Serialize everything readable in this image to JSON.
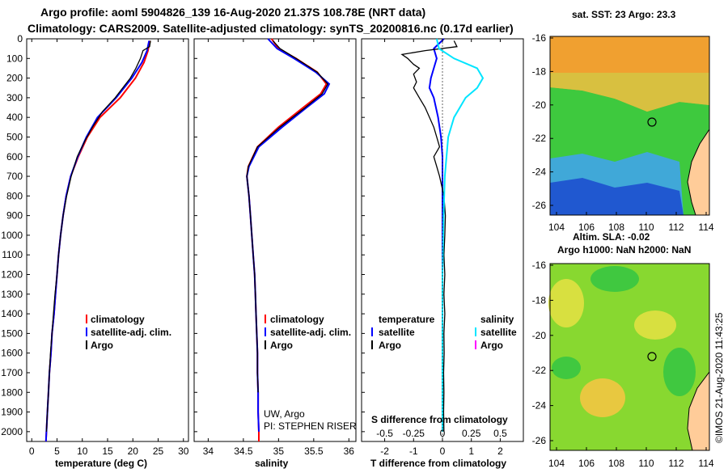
{
  "title": {
    "line1": "Argo profile: aoml 5904826_139 16-Aug-2020 21.37S 108.78E (NRT data)",
    "line2": "Climatology: CARS2009. Satellite-adjusted climatology: synTS_20200816.nc (0.17d earlier)"
  },
  "colors": {
    "climatology": "#ff0000",
    "satellite": "#0000ff",
    "argo": "#000000",
    "salinity_sat": "#00e5ff",
    "salinity_argo": "#ff00ff"
  },
  "depth_ticks": [
    "0",
    "100",
    "200",
    "300",
    "400",
    "500",
    "600",
    "700",
    "800",
    "900",
    "1000",
    "1100",
    "1200",
    "1300",
    "1400",
    "1500",
    "1600",
    "1700",
    "1800",
    "1900",
    "2000"
  ],
  "legend": {
    "climatology": "climatology",
    "satellite_adj": "satellite-adj. clim.",
    "argo": "Argo",
    "temperature": "temperature",
    "salinity": "salinity",
    "satellite": "satellite"
  },
  "credits": {
    "line1": "UW, Argo",
    "line2": "PI: STEPHEN RISER"
  },
  "s_diff_label": "S difference from climatology",
  "maps": {
    "sst_title": "sat. SST: 23 Argo: 23.3",
    "sla_title1": "Altim. SLA: -0.02",
    "sla_title2": "Argo h1000: NaN h2000: NaN",
    "lat_ticks": [
      "-16",
      "-18",
      "-20",
      "-22",
      "-24",
      "-26"
    ],
    "lon_ticks": [
      "104",
      "106",
      "108",
      "110",
      "112",
      "114"
    ]
  },
  "watermark": "©IMOS 21-Aug-2020 11:43:25",
  "chart_data": [
    {
      "type": "line",
      "name": "temperature-profile",
      "xlabel": "temperature (deg C)",
      "ylabel": "depth",
      "xlim": [
        -1,
        31
      ],
      "ylim": [
        2050,
        0
      ],
      "xticks": [
        "0",
        "5",
        "10",
        "15",
        "20",
        "25",
        "30"
      ],
      "series": [
        {
          "name": "climatology",
          "points": [
            [
              23.3,
              10
            ],
            [
              23.0,
              60
            ],
            [
              22.2,
              120
            ],
            [
              20.5,
              200
            ],
            [
              17.5,
              300
            ],
            [
              13.5,
              400
            ],
            [
              11.0,
              500
            ],
            [
              9.2,
              600
            ],
            [
              7.7,
              700
            ],
            [
              6.8,
              800
            ],
            [
              6.2,
              900
            ],
            [
              5.7,
              1000
            ],
            [
              5.3,
              1100
            ],
            [
              5.0,
              1200
            ],
            [
              4.7,
              1300
            ],
            [
              4.4,
              1400
            ],
            [
              4.0,
              1500
            ],
            [
              3.8,
              1600
            ],
            [
              3.5,
              1700
            ],
            [
              3.3,
              1800
            ],
            [
              3.1,
              1900
            ],
            [
              2.9,
              2000
            ],
            [
              2.8,
              2050
            ]
          ]
        },
        {
          "name": "satellite-adj. clim.",
          "points": [
            [
              23.2,
              10
            ],
            [
              22.8,
              60
            ],
            [
              21.8,
              120
            ],
            [
              19.8,
              200
            ],
            [
              16.7,
              300
            ],
            [
              13.0,
              400
            ],
            [
              10.8,
              500
            ],
            [
              9.1,
              600
            ],
            [
              7.7,
              700
            ],
            [
              6.8,
              800
            ],
            [
              6.2,
              900
            ],
            [
              5.7,
              1000
            ],
            [
              5.3,
              1100
            ],
            [
              5.0,
              1200
            ],
            [
              4.7,
              1300
            ],
            [
              4.4,
              1400
            ],
            [
              4.0,
              1500
            ],
            [
              3.8,
              1600
            ],
            [
              3.5,
              1700
            ],
            [
              3.3,
              1800
            ],
            [
              3.1,
              1900
            ],
            [
              2.9,
              2000
            ],
            [
              2.8,
              2050
            ]
          ]
        },
        {
          "name": "Argo",
          "points": [
            [
              23.5,
              10
            ],
            [
              23.3,
              40
            ],
            [
              22.0,
              60
            ],
            [
              21.5,
              100
            ],
            [
              20.6,
              150
            ],
            [
              19.5,
              200
            ],
            [
              18.0,
              250
            ],
            [
              16.5,
              300
            ],
            [
              14.0,
              370
            ],
            [
              12.0,
              450
            ],
            [
              10.5,
              520
            ],
            [
              9.0,
              600
            ],
            [
              7.8,
              700
            ],
            [
              6.9,
              800
            ],
            [
              6.2,
              900
            ],
            [
              5.7,
              1000
            ],
            [
              5.3,
              1100
            ],
            [
              5.0,
              1200
            ],
            [
              4.6,
              1300
            ],
            [
              4.3,
              1400
            ],
            [
              4.0,
              1500
            ],
            [
              3.7,
              1600
            ],
            [
              3.5,
              1700
            ],
            [
              3.3,
              1800
            ],
            [
              3.1,
              1900
            ],
            [
              2.9,
              2000
            ]
          ]
        }
      ]
    },
    {
      "type": "line",
      "name": "salinity-profile",
      "xlabel": "salinity",
      "ylabel": "depth",
      "xlim": [
        33.8,
        36.1
      ],
      "ylim": [
        2050,
        0
      ],
      "xticks": [
        "34",
        "34.5",
        "35",
        "35.5",
        "36"
      ],
      "series": [
        {
          "name": "climatology",
          "points": [
            [
              34.9,
              0
            ],
            [
              35.0,
              50
            ],
            [
              35.25,
              100
            ],
            [
              35.55,
              170
            ],
            [
              35.68,
              230
            ],
            [
              35.6,
              280
            ],
            [
              35.35,
              350
            ],
            [
              35.0,
              450
            ],
            [
              34.7,
              550
            ],
            [
              34.57,
              650
            ],
            [
              34.55,
              700
            ],
            [
              34.58,
              800
            ],
            [
              34.6,
              900
            ],
            [
              34.62,
              1000
            ],
            [
              34.64,
              1100
            ],
            [
              34.66,
              1200
            ],
            [
              34.67,
              1300
            ],
            [
              34.68,
              1400
            ],
            [
              34.69,
              1500
            ],
            [
              34.7,
              1600
            ],
            [
              34.7,
              1700
            ],
            [
              34.71,
              1800
            ],
            [
              34.71,
              1900
            ],
            [
              34.72,
              2000
            ],
            [
              34.72,
              2050
            ]
          ]
        },
        {
          "name": "satellite-adj. clim.",
          "points": [
            [
              34.85,
              0
            ],
            [
              34.98,
              50
            ],
            [
              35.22,
              100
            ],
            [
              35.53,
              170
            ],
            [
              35.72,
              230
            ],
            [
              35.65,
              280
            ],
            [
              35.4,
              350
            ],
            [
              35.05,
              450
            ],
            [
              34.72,
              550
            ],
            [
              34.58,
              650
            ],
            [
              34.55,
              700
            ],
            [
              34.58,
              800
            ],
            [
              34.6,
              900
            ],
            [
              34.62,
              1000
            ],
            [
              34.64,
              1100
            ],
            [
              34.66,
              1200
            ],
            [
              34.67,
              1300
            ],
            [
              34.68,
              1400
            ],
            [
              34.69,
              1500
            ],
            [
              34.7,
              1600
            ],
            [
              34.7,
              1700
            ],
            [
              34.71,
              1800
            ],
            [
              34.71,
              1900
            ],
            [
              34.72,
              2000
            ]
          ]
        },
        {
          "name": "Argo",
          "points": [
            [
              34.92,
              10
            ],
            [
              35.02,
              50
            ],
            [
              35.25,
              100
            ],
            [
              35.55,
              170
            ],
            [
              35.7,
              230
            ],
            [
              35.62,
              280
            ],
            [
              35.38,
              350
            ],
            [
              35.02,
              450
            ],
            [
              34.7,
              550
            ],
            [
              34.57,
              650
            ],
            [
              34.55,
              700
            ],
            [
              34.58,
              800
            ],
            [
              34.6,
              900
            ],
            [
              34.62,
              1000
            ],
            [
              34.64,
              1100
            ],
            [
              34.66,
              1200
            ],
            [
              34.67,
              1300
            ],
            [
              34.68,
              1400
            ],
            [
              34.69,
              1500
            ],
            [
              34.7,
              1600
            ],
            [
              34.7,
              1700
            ],
            [
              34.71,
              1800
            ]
          ]
        }
      ]
    },
    {
      "type": "line",
      "name": "difference-profile",
      "xlabel": "T difference from climatology",
      "xlabel_top": "S difference from climatology",
      "ylabel": "depth",
      "xlim": [
        -2.8,
        2.8
      ],
      "ylim": [
        2050,
        0
      ],
      "xticks": [
        "-2",
        "-1",
        "0",
        "1",
        "2"
      ],
      "xticks_s": [
        "-0.5",
        "-0.25",
        "0",
        "0.25",
        "0.5"
      ],
      "series": [
        {
          "name": "temperature satellite",
          "points": [
            [
              0.05,
              0
            ],
            [
              -0.3,
              50
            ],
            [
              -0.2,
              100
            ],
            [
              -0.3,
              150
            ],
            [
              -0.4,
              200
            ],
            [
              -0.45,
              250
            ],
            [
              -0.3,
              300
            ],
            [
              -0.15,
              400
            ],
            [
              -0.05,
              500
            ],
            [
              0.0,
              600
            ],
            [
              0.0,
              700
            ],
            [
              0.0,
              800
            ],
            [
              0.0,
              900
            ],
            [
              0.0,
              1000
            ],
            [
              0.0,
              1100
            ],
            [
              0.0,
              1200
            ]
          ]
        },
        {
          "name": "temperature Argo",
          "points": [
            [
              0.4,
              10
            ],
            [
              0.5,
              40
            ],
            [
              -0.6,
              60
            ],
            [
              -1.4,
              80
            ],
            [
              -1.2,
              100
            ],
            [
              -1.0,
              130
            ],
            [
              -0.8,
              150
            ],
            [
              -1.0,
              180
            ],
            [
              -0.9,
              220
            ],
            [
              -1.0,
              250
            ],
            [
              -0.8,
              300
            ],
            [
              -0.6,
              350
            ],
            [
              -0.3,
              450
            ],
            [
              -0.2,
              500
            ],
            [
              -0.1,
              550
            ],
            [
              -0.3,
              600
            ],
            [
              -0.2,
              650
            ],
            [
              -0.1,
              700
            ],
            [
              0.05,
              800
            ],
            [
              0.1,
              900
            ],
            [
              0.08,
              1000
            ],
            [
              0.05,
              1100
            ],
            [
              0.08,
              1200
            ],
            [
              0.05,
              1300
            ],
            [
              0.08,
              1400
            ],
            [
              0.05,
              1500
            ],
            [
              0.06,
              1600
            ],
            [
              0.04,
              1700
            ],
            [
              0.05,
              1800
            ],
            [
              0.04,
              1900
            ],
            [
              0.05,
              2000
            ]
          ]
        },
        {
          "name": "salinity satellite",
          "points": [
            [
              -0.05,
              0
            ],
            [
              -0.03,
              50
            ],
            [
              0.1,
              100
            ],
            [
              0.3,
              150
            ],
            [
              0.35,
              200
            ],
            [
              0.3,
              250
            ],
            [
              0.2,
              300
            ],
            [
              0.1,
              400
            ],
            [
              0.05,
              500
            ],
            [
              0.02,
              700
            ],
            [
              0.01,
              900
            ],
            [
              0.0,
              1200
            ],
            [
              0.0,
              1600
            ],
            [
              0.0,
              2000
            ]
          ]
        },
        {
          "name": "salinity Argo",
          "points": []
        }
      ]
    }
  ]
}
